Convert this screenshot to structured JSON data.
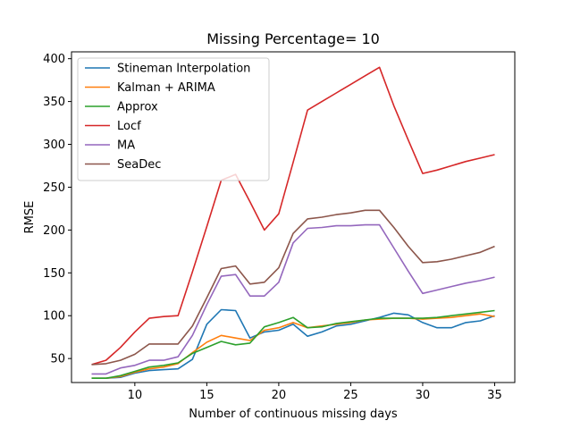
{
  "chart_data": {
    "type": "line",
    "title": "Missing Percentage= 10",
    "xlabel": "Number of continuous missing days",
    "ylabel": "RMSE",
    "xlim": [
      5.6,
      36.4
    ],
    "ylim": [
      22,
      408
    ],
    "xticks": [
      10,
      15,
      20,
      25,
      30,
      35
    ],
    "yticks": [
      50,
      100,
      150,
      200,
      250,
      300,
      350,
      400
    ],
    "grid": false,
    "legend_position": "top-left",
    "x": [
      7,
      8,
      9,
      10,
      11,
      12,
      13,
      14,
      15,
      16,
      17,
      18,
      19,
      20,
      21,
      22,
      23,
      24,
      25,
      26,
      27,
      28,
      29,
      30,
      31,
      32,
      33,
      34,
      35
    ],
    "series": [
      {
        "name": "Stineman Interpolation",
        "color": "#1f77b4",
        "values": [
          27,
          27,
          28,
          33,
          36,
          37,
          38,
          49,
          90,
          107,
          106,
          74,
          81,
          83,
          90,
          76,
          81,
          88,
          90,
          94,
          98,
          103,
          101,
          92,
          86,
          86,
          92,
          94,
          100
        ]
      },
      {
        "name": "Kalman + ARIMA",
        "color": "#ff7f0e",
        "values": [
          27,
          27,
          29,
          34,
          38,
          40,
          44,
          57,
          69,
          77,
          74,
          71,
          83,
          86,
          92,
          86,
          88,
          90,
          92,
          95,
          96,
          97,
          97,
          96,
          97,
          98,
          100,
          102,
          99
        ]
      },
      {
        "name": "Approx",
        "color": "#2ca02c",
        "values": [
          27,
          27,
          30,
          35,
          40,
          42,
          45,
          56,
          63,
          70,
          66,
          68,
          87,
          92,
          98,
          86,
          87,
          91,
          93,
          95,
          97,
          97,
          97,
          97,
          98,
          100,
          102,
          104,
          106
        ]
      },
      {
        "name": "Locf",
        "color": "#d62728",
        "values": [
          43,
          48,
          63,
          81,
          97,
          99,
          100,
          151,
          204,
          258,
          265,
          233,
          200,
          219,
          279,
          340,
          350,
          360,
          370,
          380,
          390,
          345,
          305,
          266,
          270,
          275,
          280,
          284,
          288
        ]
      },
      {
        "name": "MA",
        "color": "#9467bd",
        "values": [
          32,
          32,
          39,
          42,
          48,
          48,
          52,
          77,
          113,
          146,
          148,
          123,
          123,
          139,
          185,
          202,
          203,
          205,
          205,
          206,
          206,
          179,
          152,
          126,
          130,
          134,
          138,
          141,
          145
        ]
      },
      {
        "name": "SeaDec",
        "color": "#8c564b",
        "values": [
          43,
          44,
          48,
          55,
          67,
          67,
          67,
          88,
          121,
          155,
          158,
          137,
          139,
          156,
          196,
          213,
          215,
          218,
          220,
          223,
          223,
          203,
          181,
          162,
          163,
          166,
          170,
          174,
          181
        ]
      }
    ]
  }
}
